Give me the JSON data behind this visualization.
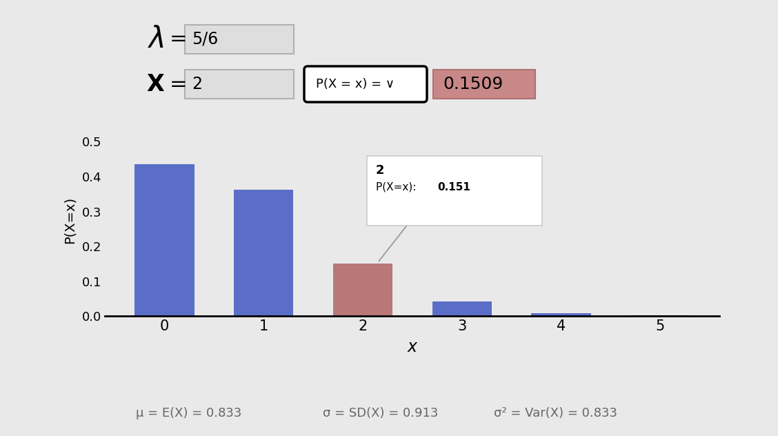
{
  "lambda": "5/6",
  "x_val": "2",
  "prob_value": "0.1509",
  "bar_x": [
    0,
    1,
    2,
    3,
    4,
    5
  ],
  "bar_heights": [
    0.4346,
    0.3622,
    0.1509,
    0.042,
    0.0087,
    0.0015
  ],
  "bar_colors": [
    "#5b6ec7",
    "#5b6ec7",
    "#b87878",
    "#5b6ec7",
    "#5b6ec7",
    "#5b6ec7"
  ],
  "ylabel": "P(X=x)",
  "xlabel": "x",
  "ylim": [
    0,
    0.55
  ],
  "yticks": [
    0.0,
    0.1,
    0.2,
    0.3,
    0.4,
    0.5
  ],
  "mu_text": "μ = E(X) = 0.833",
  "sigma_text": "σ = SD(X) = 0.913",
  "var_text": "σ² = Var(X) = 0.833",
  "bg_color": "#e9e9e9",
  "input_box_color": "#dedede",
  "result_box_color": "#c98888",
  "tooltip_label": "2",
  "tooltip_prob": "0.151"
}
